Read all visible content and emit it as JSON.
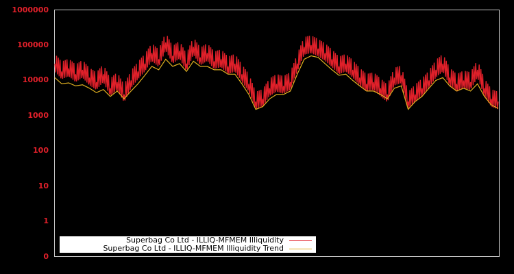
{
  "chart_data": {
    "type": "line",
    "title": "",
    "xlabel": "",
    "ylabel": "",
    "yscale": "log",
    "ylim": [
      0.1,
      1000000
    ],
    "ytick_labels": [
      "1000000",
      "100000",
      "10000",
      "1000",
      "100",
      "10",
      "1",
      "0"
    ],
    "ytick_values": [
      1000000,
      100000,
      10000,
      1000,
      100,
      10,
      1,
      0.1
    ],
    "grid": false,
    "legend_position": "lower left",
    "background": "#000000",
    "axis_color": "#c8c8c8",
    "tick_label_color": "#e0202a",
    "x_index": [
      0,
      1,
      2,
      3,
      4,
      5,
      6,
      7,
      8,
      9,
      10,
      11,
      12,
      13,
      14,
      15,
      16,
      17,
      18,
      19,
      20,
      21,
      22,
      23,
      24,
      25,
      26,
      27,
      28,
      29,
      30,
      31,
      32,
      33,
      34,
      35,
      36,
      37,
      38,
      39,
      40,
      41,
      42,
      43,
      44,
      45,
      46,
      47,
      48,
      49,
      50,
      51,
      52,
      53,
      54,
      55,
      56,
      57,
      58,
      59,
      60,
      61,
      62,
      63,
      64
    ],
    "series": [
      {
        "name": "Superbag Co Ltd - ILLIQ-MFMEM Illiquidity",
        "color": "#e0202a",
        "values": [
          30000,
          18000,
          22000,
          15000,
          20000,
          12000,
          9000,
          15000,
          6000,
          9000,
          4000,
          10000,
          18000,
          30000,
          60000,
          40000,
          120000,
          50000,
          70000,
          30000,
          90000,
          45000,
          60000,
          35000,
          40000,
          25000,
          30000,
          15000,
          8000,
          2500,
          3000,
          6000,
          8000,
          7000,
          9000,
          30000,
          90000,
          100000,
          80000,
          60000,
          40000,
          25000,
          30000,
          20000,
          12000,
          8000,
          9000,
          6000,
          4000,
          12000,
          14000,
          2500,
          4000,
          6000,
          10000,
          20000,
          30000,
          12000,
          8000,
          10000,
          9000,
          20000,
          6000,
          3000,
          2500
        ]
      },
      {
        "name": "Superbag Co Ltd - ILLIQ-MFMEM Illiquidity Trend",
        "color": "#e0b020",
        "values": [
          12000,
          8000,
          8500,
          7000,
          7500,
          6000,
          4500,
          5500,
          3500,
          5000,
          3000,
          5000,
          8000,
          14000,
          25000,
          20000,
          40000,
          25000,
          30000,
          18000,
          35000,
          25000,
          25000,
          20000,
          20000,
          15000,
          15000,
          8000,
          4000,
          1500,
          1800,
          3000,
          4000,
          4000,
          5000,
          15000,
          40000,
          50000,
          45000,
          30000,
          20000,
          14000,
          15000,
          10000,
          7000,
          5000,
          5000,
          4000,
          3000,
          6000,
          7000,
          1500,
          2500,
          3500,
          6000,
          10000,
          12000,
          7000,
          5000,
          6000,
          5000,
          8000,
          3500,
          2000,
          1600
        ]
      }
    ]
  },
  "legend": {
    "items": [
      {
        "label": "Superbag Co Ltd - ILLIQ-MFMEM Illiquidity",
        "color": "#e0202a"
      },
      {
        "label": "Superbag Co Ltd - ILLIQ-MFMEM Illiquidity Trend",
        "color": "#e0b020"
      }
    ]
  }
}
